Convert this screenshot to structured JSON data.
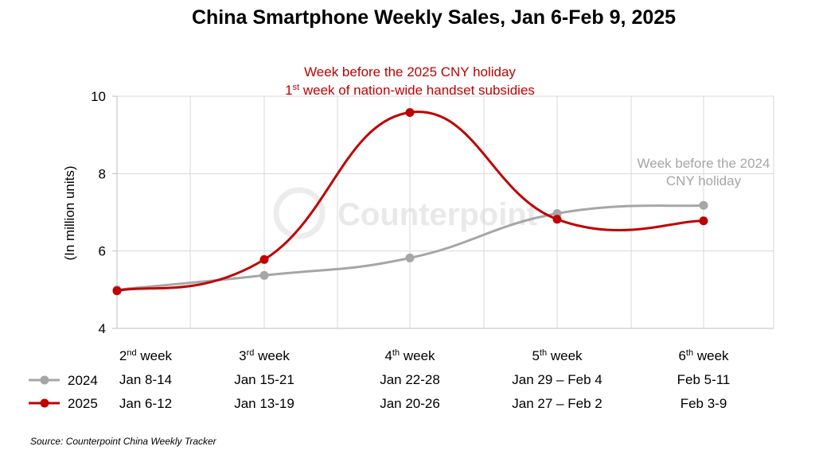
{
  "watermark": "Counterpoint",
  "source": "Source: Counterpoint China Weekly Tracker",
  "colors": {
    "s2024": "#a6a6a6",
    "s2025": "#c00000",
    "grid": "#d9d9d9",
    "axis": "#bfbfbf",
    "ann2024": "#a6a6a6",
    "ann2025": "#c00000"
  },
  "chart_data": {
    "type": "line",
    "title": "China Smartphone Weekly Sales, Jan 6-Feb 9, 2025",
    "ylabel": "(In million units)",
    "ylim": [
      4,
      10
    ],
    "yticks": [
      "4",
      "6",
      "8",
      "10"
    ],
    "grid": true,
    "categories": [
      {
        "ord": "2",
        "sup": "nd",
        "rest": " week",
        "d2024": "Jan 8-14",
        "d2025": "Jan 6-12"
      },
      {
        "ord": "3",
        "sup": "rd",
        "rest": " week",
        "d2024": "Jan 15-21",
        "d2025": "Jan 13-19"
      },
      {
        "ord": "4",
        "sup": "th",
        "rest": " week",
        "d2024": "Jan 22-28",
        "d2025": "Jan 20-26"
      },
      {
        "ord": "5",
        "sup": "th",
        "rest": " week",
        "d2024": "Jan 29 – Feb 4",
        "d2025": "Jan 27 – Feb 2"
      },
      {
        "ord": "6",
        "sup": "th",
        "rest": " week",
        "d2024": "Feb 5-11",
        "d2025": "Feb 3-9"
      }
    ],
    "series": [
      {
        "name": "2024",
        "color": "#a6a6a6",
        "values": [
          5.0,
          5.37,
          5.82,
          6.97,
          7.18
        ]
      },
      {
        "name": "2025",
        "color": "#c00000",
        "values": [
          4.97,
          5.78,
          9.58,
          6.82,
          6.78
        ]
      }
    ],
    "annotations": {
      "a2025": {
        "line1": "Week before the 2025 CNY holiday",
        "line2_ord": "1",
        "line2_sup": "st",
        "line2_rest": " week of nation-wide handset subsidies"
      },
      "a2024": {
        "line1": "Week before the 2024",
        "line2": "CNY holiday"
      }
    }
  }
}
